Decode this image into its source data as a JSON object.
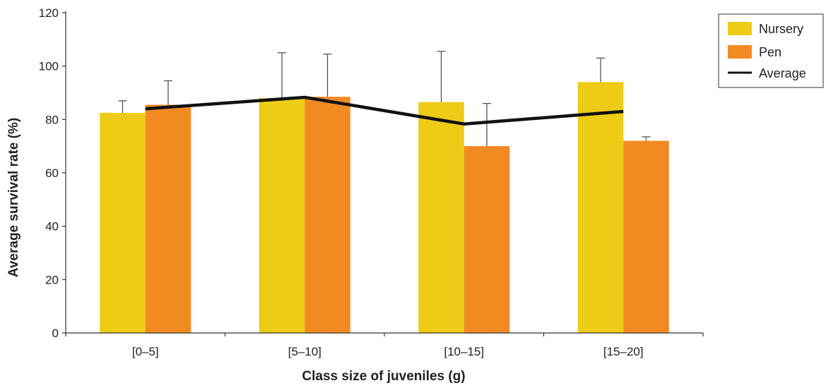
{
  "chart_data": {
    "type": "bar",
    "xlabel": "Class size of juveniles (g)",
    "ylabel": "Average survival rate (%)",
    "categories": [
      "[0–5]",
      "[5–10]",
      "[10–15]",
      "[15–20]"
    ],
    "ylim": [
      0,
      120
    ],
    "yticks": [
      0,
      20,
      40,
      60,
      80,
      100,
      120
    ],
    "series": [
      {
        "name": "Nursery",
        "color": "#edcc17",
        "values": [
          82.5,
          88,
          86.5,
          94
        ],
        "error": [
          4.5,
          17,
          19,
          9
        ]
      },
      {
        "name": "Pen",
        "color": "#f28a22",
        "values": [
          85.5,
          88.5,
          70,
          72
        ],
        "error": [
          9,
          16,
          16,
          1.5
        ]
      }
    ],
    "line_series": {
      "name": "Average",
      "color": "#111111",
      "values": [
        84,
        88.3,
        78.3,
        83
      ]
    },
    "legend_position": "top-right",
    "grid": false
  }
}
